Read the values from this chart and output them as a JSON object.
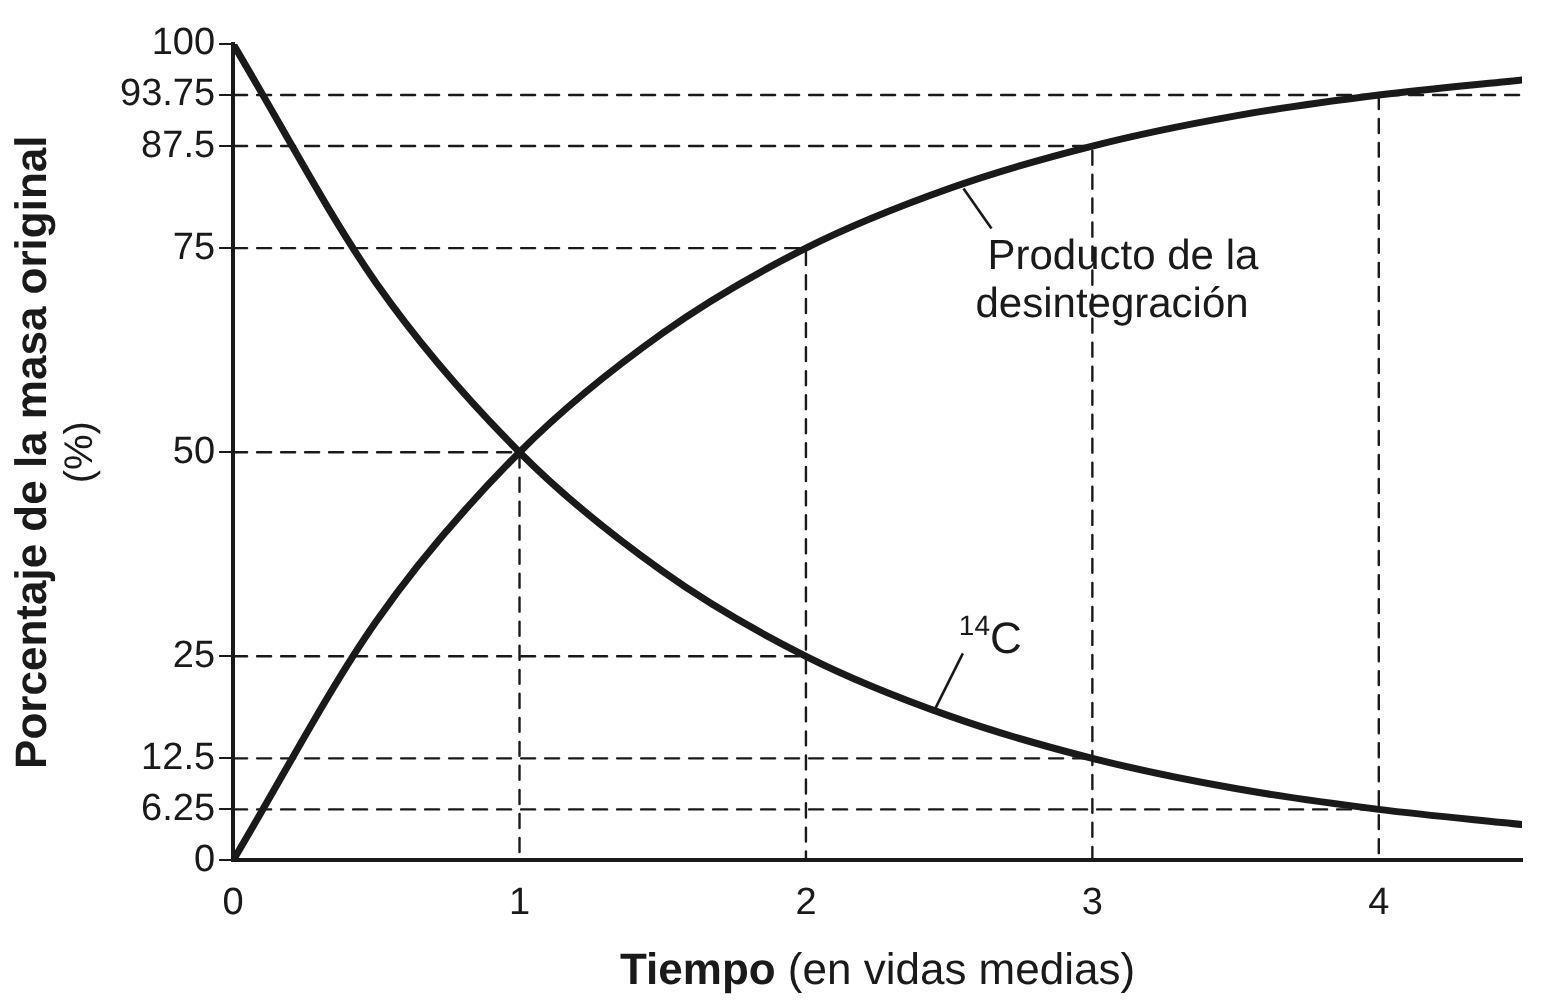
{
  "chart_data": {
    "type": "line",
    "xlabel": "Tiempo (en vidas medias)",
    "ylabel": "Porcentaje de la masa original (%)",
    "x": [
      0,
      0.5,
      1,
      1.5,
      2,
      2.5,
      3,
      3.5,
      4,
      4.5
    ],
    "series": [
      {
        "color": "#1a1a1a",
        "values": [
          100,
          70.7,
          50,
          35.4,
          25,
          17.7,
          12.5,
          8.8,
          6.25,
          4.4
        ]
      },
      {
        "color": "#1a1a1a",
        "values": [
          0,
          29.3,
          50,
          64.6,
          75,
          82.3,
          87.5,
          91.2,
          93.75,
          95.6
        ]
      },
      {
        "color": "#1a1a1a",
        "line_style": "dashed",
        "x": [
          0,
          1,
          1
        ],
        "values": [
          50,
          50,
          0
        ]
      },
      {
        "color": "#1a1a1a",
        "line_style": "dashed",
        "x": [
          0,
          2,
          2
        ],
        "values": [
          75,
          75,
          0
        ]
      },
      {
        "color": "#1a1a1a",
        "line_style": "dashed",
        "x": [
          0,
          2
        ],
        "values": [
          25,
          25
        ]
      },
      {
        "color": "#1a1a1a",
        "line_style": "dashed",
        "x": [
          0,
          3,
          3
        ],
        "values": [
          87.5,
          87.5,
          0
        ]
      },
      {
        "color": "#1a1a1a",
        "line_style": "dashed",
        "x": [
          0,
          3
        ],
        "values": [
          12.5,
          12.5
        ]
      },
      {
        "color": "#1a1a1a",
        "line_style": "dashed",
        "x": [
          0,
          4.5
        ],
        "values": [
          93.75,
          93.75
        ]
      },
      {
        "color": "#1a1a1a",
        "line_style": "dashed",
        "x": [
          4,
          4
        ],
        "values": [
          93.75,
          0
        ]
      },
      {
        "color": "#1a1a1a",
        "line_style": "dashed",
        "x": [
          0,
          4
        ],
        "values": [
          6.25,
          6.25
        ]
      }
    ],
    "marker": "none",
    "grid": false,
    "legend": false,
    "xlim": [
      0,
      4.5
    ],
    "xticks": [
      0,
      1,
      2,
      3,
      4
    ],
    "ylim": [
      0,
      100
    ],
    "yticks": [
      0,
      6.25,
      12.5,
      25,
      50,
      75,
      87.5,
      93.75,
      100
    ],
    "annotations": [
      {
        "text": "Producto de la desintegración",
        "x": 2.55,
        "y": 82.3
      },
      {
        "text": "$^{14}$C",
        "x": 2.45,
        "y": 18.5
      }
    ]
  }
}
